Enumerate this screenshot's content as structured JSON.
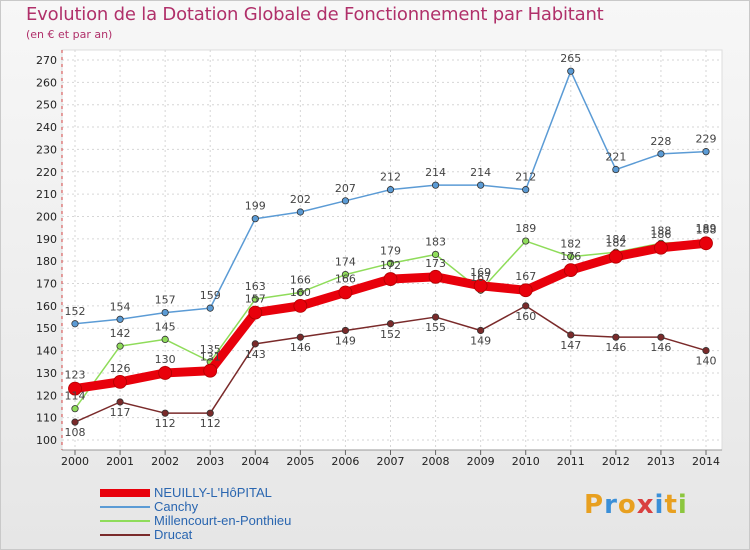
{
  "chart_data": {
    "type": "line",
    "title": "Evolution de la Dotation Globale de Fonctionnement par Habitant",
    "subtitle": "(en € et par an)",
    "xlabel": "",
    "ylabel": "",
    "x": [
      "2000",
      "2001",
      "2002",
      "2003",
      "2004",
      "2005",
      "2006",
      "2007",
      "2008",
      "2009",
      "2010",
      "2011",
      "2012",
      "2013",
      "2014"
    ],
    "ylim": [
      100,
      270
    ],
    "yticks": [
      100,
      110,
      120,
      130,
      140,
      150,
      160,
      170,
      180,
      190,
      200,
      210,
      220,
      230,
      240,
      250,
      260,
      270
    ],
    "grid": true,
    "legend": "bottom-left",
    "series": [
      {
        "name": "NEUILLY-L'HôPITAL",
        "color": "#e8000b",
        "values": [
          123,
          126,
          130,
          131,
          157,
          160,
          166,
          172,
          173,
          169,
          167,
          176,
          182,
          186,
          188
        ]
      },
      {
        "name": "Canchy",
        "color": "#5b9bd5",
        "values": [
          152,
          154,
          157,
          159,
          199,
          202,
          207,
          212,
          214,
          214,
          212,
          265,
          221,
          228,
          229
        ]
      },
      {
        "name": "Millencourt-en-Ponthieu",
        "color": "#8fdc5a",
        "values": [
          114,
          142,
          145,
          135,
          163,
          166,
          174,
          179,
          183,
          167,
          189,
          182,
          184,
          188,
          189
        ]
      },
      {
        "name": "Drucat",
        "color": "#7a2a2a",
        "values": [
          108,
          117,
          112,
          112,
          143,
          146,
          149,
          152,
          155,
          149,
          160,
          147,
          146,
          146,
          140
        ]
      }
    ],
    "data_labels": [
      [
        "123",
        "126",
        "130",
        "131",
        "157",
        "160",
        "166",
        "172",
        "173",
        "169",
        "167",
        "176",
        "182",
        "186",
        "188"
      ],
      [
        "152",
        "154",
        "157",
        "159",
        "199",
        "202",
        "207",
        "212",
        "214",
        "214",
        "212",
        "265",
        "221",
        "228",
        "229"
      ],
      [
        "114",
        "142",
        "145",
        "135",
        "163",
        "166",
        "174",
        "179",
        "183",
        "167",
        "189",
        "182",
        "184",
        "188",
        "189"
      ],
      [
        "108",
        "117",
        "112",
        "112",
        "143",
        "146",
        "149",
        "152",
        "155",
        "149",
        "160",
        "147",
        "146",
        "146",
        "140"
      ]
    ]
  },
  "logo": {
    "text": "Proxiti",
    "colors": [
      "#e8a020",
      "#3a8fd8",
      "#e8a020",
      "#d94040",
      "#3a8fd8",
      "#e8a020",
      "#8cc63e"
    ]
  }
}
